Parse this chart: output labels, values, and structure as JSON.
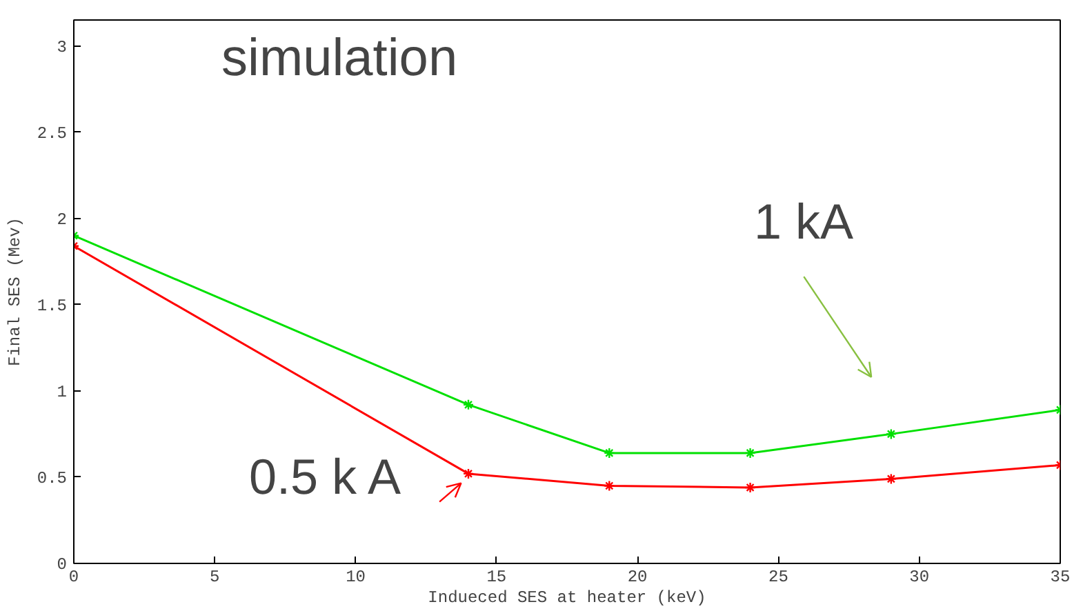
{
  "chart_data": {
    "type": "line",
    "xlabel": "Indueced SES at heater (keV)",
    "ylabel": "Final SES (Mev)",
    "x": [
      0,
      14,
      19,
      24,
      29,
      35
    ],
    "series": [
      {
        "color": "#00e000",
        "values": [
          1.9,
          0.92,
          0.64,
          0.64,
          0.75,
          0.89
        ]
      },
      {
        "color": "#ff0000",
        "values": [
          1.84,
          0.52,
          0.45,
          0.44,
          0.49,
          0.57
        ]
      }
    ],
    "xlim": [
      0,
      35
    ],
    "ylim": [
      0,
      3.15
    ],
    "xticks": [
      0,
      5,
      10,
      15,
      20,
      25,
      30,
      35
    ],
    "yticks": [
      0,
      0.5,
      1,
      1.5,
      2,
      2.5,
      3
    ],
    "marker": "cross",
    "line_style": "solid",
    "annotations": [
      "simulation",
      "1 kA",
      "0.5 k A"
    ]
  }
}
